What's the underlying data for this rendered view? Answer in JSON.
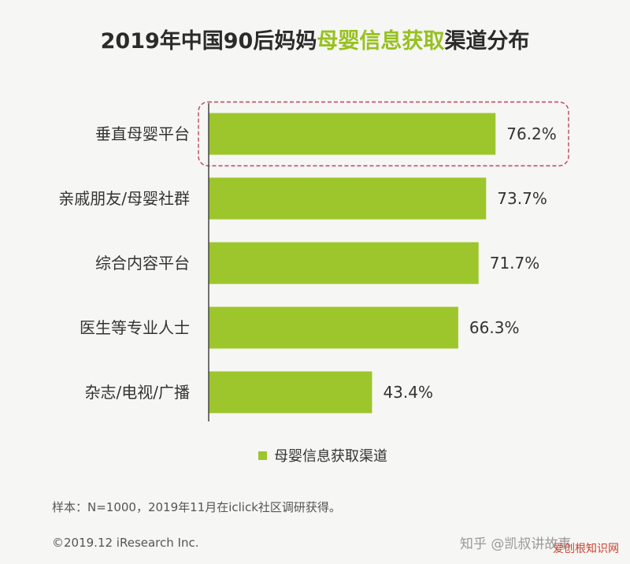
{
  "header": {
    "title_prefix": "2019年中国90后妈妈",
    "title_highlight": "母婴信息获取",
    "title_suffix": "渠道分布"
  },
  "colors": {
    "bar": "#9dc62d",
    "title_highlight": "#97c11f",
    "highlight_border": "#c0425a"
  },
  "chart_data": {
    "type": "bar",
    "orientation": "horizontal",
    "categories": [
      "垂直母婴平台",
      "亲戚朋友/母婴社群",
      "综合内容平台",
      "医生等专业人士",
      "杂志/电视/广播"
    ],
    "series": [
      {
        "name": "母婴信息获取渠道",
        "values": [
          76.2,
          73.7,
          71.7,
          66.3,
          43.4
        ]
      }
    ],
    "value_labels": [
      "76.2%",
      "73.7%",
      "71.7%",
      "66.3%",
      "43.4%"
    ],
    "xlim": [
      0,
      100
    ],
    "grid": false,
    "legend": "bottom",
    "highlighted_category": "垂直母婴平台"
  },
  "legend": {
    "label": "母婴信息获取渠道"
  },
  "footer": {
    "note": "样本：N=1000，2019年11月在iclick社区调研获得。",
    "copyright": "©2019.12 iResearch Inc.",
    "watermark": "知乎 @凯叔讲故事",
    "stamp": "爱创根知识网"
  }
}
